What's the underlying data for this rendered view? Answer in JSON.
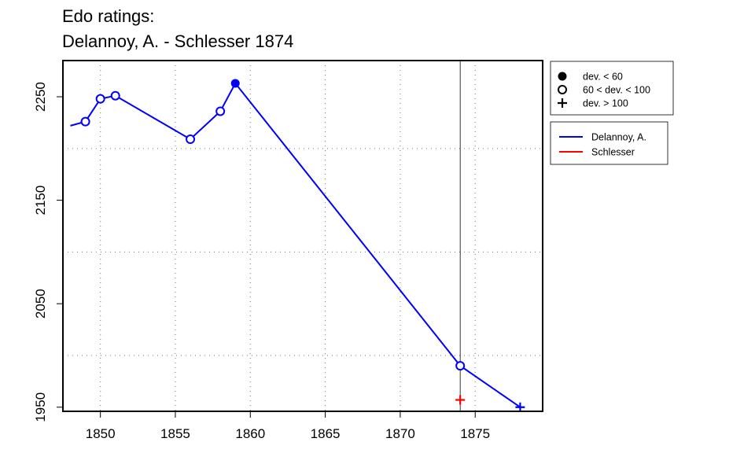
{
  "title_line1": "Edo ratings:",
  "title_line2": "Delannoy, A. - Schlesser 1874",
  "chart_data": {
    "type": "line",
    "x_ticks": [
      1850,
      1855,
      1860,
      1865,
      1870,
      1875
    ],
    "y_ticks": [
      1950,
      2050,
      2150,
      2250
    ],
    "xlim": [
      1847.5,
      1879.5
    ],
    "ylim": [
      1946,
      2285
    ],
    "grid": true,
    "grid_x": [
      1850,
      1855,
      1860,
      1865,
      1870,
      1875
    ],
    "grid_y": [
      2000,
      2100,
      2200
    ],
    "vline_x": 1874,
    "series": [
      {
        "name": "Delannoy, A.",
        "color": "#0000ff",
        "points": [
          {
            "x": 1848,
            "y": 2222,
            "marker": "none"
          },
          {
            "x": 1849,
            "y": 2226,
            "marker": "open"
          },
          {
            "x": 1850,
            "y": 2248,
            "marker": "open"
          },
          {
            "x": 1851,
            "y": 2251,
            "marker": "open"
          },
          {
            "x": 1856,
            "y": 2209,
            "marker": "open"
          },
          {
            "x": 1858,
            "y": 2236,
            "marker": "open"
          },
          {
            "x": 1859,
            "y": 2263,
            "marker": "filled"
          },
          {
            "x": 1874,
            "y": 1990,
            "marker": "open"
          },
          {
            "x": 1878,
            "y": 1950,
            "marker": "plus"
          }
        ]
      },
      {
        "name": "Schlesser",
        "color": "#ff0000",
        "points": [
          {
            "x": 1874,
            "y": 1957,
            "marker": "plus"
          }
        ]
      }
    ],
    "marker_legend": [
      {
        "symbol": "filled",
        "label": "dev. < 60"
      },
      {
        "symbol": "open",
        "label": "60 < dev. < 100"
      },
      {
        "symbol": "plus",
        "label": "dev. > 100"
      }
    ],
    "series_legend": [
      {
        "label": "Delannoy, A.",
        "color": "#0000ff"
      },
      {
        "label": "Schlesser",
        "color": "#ff0000"
      }
    ]
  }
}
